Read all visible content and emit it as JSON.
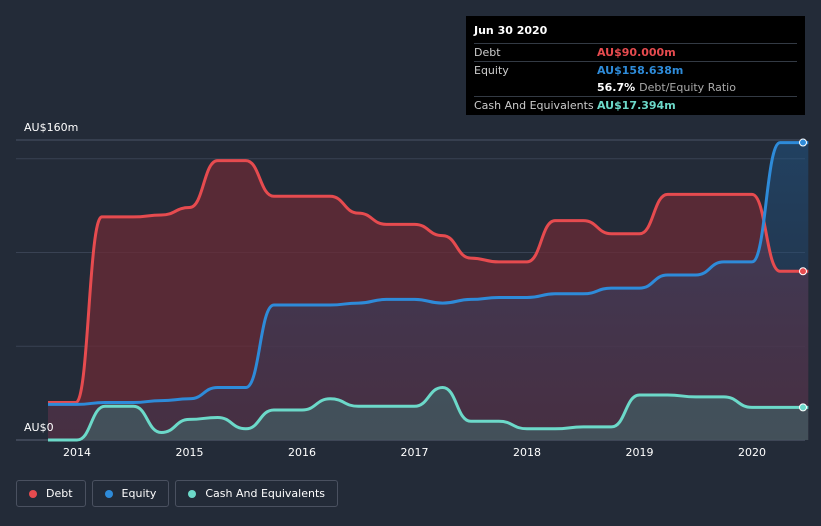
{
  "tooltip": {
    "date": "Jun 30 2020",
    "debt_label": "Debt",
    "debt_value": "AU$90.000m",
    "equity_label": "Equity",
    "equity_value": "AU$158.638m",
    "ratio_value": "56.7%",
    "ratio_label": "Debt/Equity Ratio",
    "cash_label": "Cash And Equivalents",
    "cash_value": "AU$17.394m"
  },
  "legend": [
    {
      "name": "Debt",
      "color": "#e64b4f"
    },
    {
      "name": "Equity",
      "color": "#2e8bd9"
    },
    {
      "name": "Cash And Equivalents",
      "color": "#6cd9c9"
    }
  ],
  "chart_data": {
    "type": "area",
    "y_top_label": "AU$160m",
    "y_bottom_label": "AU$0",
    "ylim": [
      0,
      160
    ],
    "xlim": [
      2013.6,
      2020.5
    ],
    "x_ticks": [
      "2014",
      "2015",
      "2016",
      "2017",
      "2018",
      "2019",
      "2020"
    ],
    "grid": true,
    "legend_position": "bottom-left",
    "series": [
      {
        "name": "Debt",
        "color": "#e64b4f",
        "x": [
          2013.72,
          2013.99,
          2014.22,
          2014.5,
          2014.75,
          2015.0,
          2015.25,
          2015.5,
          2015.75,
          2016.0,
          2016.25,
          2016.5,
          2016.75,
          2017.0,
          2017.25,
          2017.5,
          2017.75,
          2018.0,
          2018.25,
          2018.5,
          2018.75,
          2019.0,
          2019.25,
          2019.5,
          2019.75,
          2020.0,
          2020.25,
          2020.5
        ],
        "y": [
          20,
          20,
          119,
          119,
          120,
          124,
          149,
          149,
          130,
          130,
          130,
          121,
          115,
          115,
          109,
          97,
          95,
          95,
          117,
          117,
          110,
          110,
          131,
          131,
          131,
          131,
          90,
          90
        ]
      },
      {
        "name": "Equity",
        "color": "#2e8bd9",
        "x": [
          2013.72,
          2014.0,
          2014.25,
          2014.5,
          2014.75,
          2015.0,
          2015.25,
          2015.5,
          2015.75,
          2016.0,
          2016.25,
          2016.5,
          2016.75,
          2017.0,
          2017.25,
          2017.5,
          2017.75,
          2018.0,
          2018.25,
          2018.5,
          2018.75,
          2019.0,
          2019.25,
          2019.5,
          2019.75,
          2020.0,
          2020.25,
          2020.5
        ],
        "y": [
          19,
          19,
          20,
          20,
          21,
          22,
          28,
          28,
          72,
          72,
          72,
          73,
          75,
          75,
          73,
          75,
          76,
          76,
          78,
          78,
          81,
          81,
          88,
          88,
          95,
          95,
          158.638,
          158.638
        ]
      },
      {
        "name": "Cash And Equivalents",
        "color": "#6cd9c9",
        "x": [
          2013.72,
          2014.0,
          2014.25,
          2014.5,
          2014.75,
          2015.0,
          2015.25,
          2015.5,
          2015.75,
          2016.0,
          2016.25,
          2016.5,
          2016.75,
          2017.0,
          2017.25,
          2017.5,
          2017.75,
          2018.0,
          2018.25,
          2018.5,
          2018.75,
          2019.0,
          2019.25,
          2019.5,
          2019.75,
          2020.0,
          2020.25,
          2020.5
        ],
        "y": [
          0,
          0,
          18,
          18,
          4,
          11,
          12,
          6,
          16,
          16,
          22,
          18,
          18,
          18,
          28,
          10,
          10,
          6,
          6,
          7,
          7,
          24,
          24,
          23,
          23,
          17.394,
          17.394,
          17.394
        ]
      }
    ]
  }
}
